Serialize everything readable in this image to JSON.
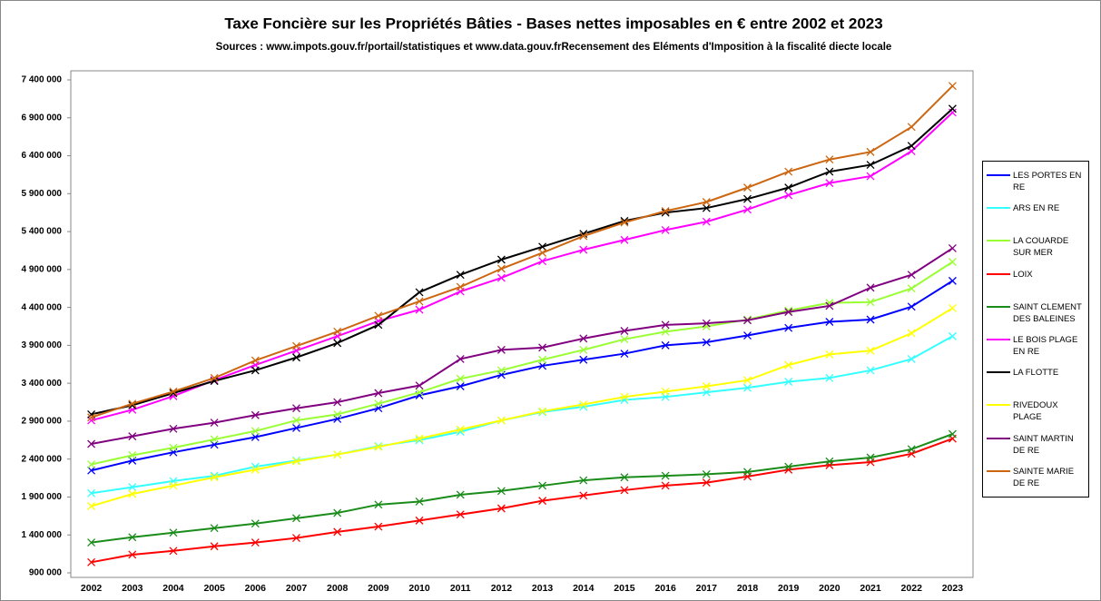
{
  "chart_data": {
    "type": "line",
    "title": "Taxe Foncière sur les Propriétés Bâties - Bases nettes imposables en € entre 2002 et 2023",
    "subtitle": "Sources : www.impots.gouv.fr/portail/statistiques et www.data.gouv.frRecensement des Eléments d'Imposition à la fiscalité diecte locale",
    "categories": [
      "2002",
      "2003",
      "2004",
      "2005",
      "2006",
      "2007",
      "2008",
      "2009",
      "2010",
      "2011",
      "2012",
      "2013",
      "2014",
      "2015",
      "2016",
      "2017",
      "2018",
      "2019",
      "2020",
      "2021",
      "2022",
      "2023"
    ],
    "ylim": [
      900000,
      7400000
    ],
    "yticks": [
      {
        "value": 900000,
        "label": "900 000"
      },
      {
        "value": 1400000,
        "label": "1 400 000"
      },
      {
        "value": 1900000,
        "label": "1 900 000"
      },
      {
        "value": 2400000,
        "label": "2 400 000"
      },
      {
        "value": 2900000,
        "label": "2 900 000"
      },
      {
        "value": 3400000,
        "label": "3 400 000"
      },
      {
        "value": 3900000,
        "label": "3 900 000"
      },
      {
        "value": 4400000,
        "label": "4 400 000"
      },
      {
        "value": 4900000,
        "label": "4 900 000"
      },
      {
        "value": 5400000,
        "label": "5 400 000"
      },
      {
        "value": 5900000,
        "label": "5 900 000"
      },
      {
        "value": 6400000,
        "label": "6 400 000"
      },
      {
        "value": 6900000,
        "label": "6 900 000"
      },
      {
        "value": 7400000,
        "label": "7 400 000"
      }
    ],
    "grid": false,
    "legend": "right",
    "series": [
      {
        "name": "LES PORTES EN RE",
        "color": "#0000ff",
        "values": [
          2250000,
          2380000,
          2490000,
          2590000,
          2690000,
          2810000,
          2930000,
          3070000,
          3240000,
          3360000,
          3510000,
          3630000,
          3710000,
          3790000,
          3900000,
          3940000,
          4030000,
          4130000,
          4210000,
          4240000,
          4410000,
          4750000
        ]
      },
      {
        "name": "ARS EN RE",
        "color": "#33ffff",
        "values": [
          1950000,
          2030000,
          2110000,
          2180000,
          2300000,
          2380000,
          2460000,
          2570000,
          2650000,
          2760000,
          2910000,
          3020000,
          3090000,
          3180000,
          3220000,
          3280000,
          3340000,
          3420000,
          3470000,
          3570000,
          3720000,
          4020000
        ]
      },
      {
        "name": "LA COUARDE SUR MER",
        "color": "#99ff33",
        "values": [
          2330000,
          2450000,
          2550000,
          2660000,
          2770000,
          2910000,
          2990000,
          3130000,
          3280000,
          3460000,
          3570000,
          3710000,
          3840000,
          3980000,
          4080000,
          4150000,
          4240000,
          4360000,
          4460000,
          4470000,
          4650000,
          5000000
        ]
      },
      {
        "name": "LOIX",
        "color": "#ff0000",
        "values": [
          1040000,
          1140000,
          1190000,
          1250000,
          1300000,
          1360000,
          1440000,
          1510000,
          1590000,
          1670000,
          1750000,
          1850000,
          1920000,
          1990000,
          2050000,
          2090000,
          2170000,
          2260000,
          2320000,
          2360000,
          2470000,
          2670000
        ]
      },
      {
        "name": "SAINT CLEMENT DES BALEINES",
        "color": "#1a8c1a",
        "values": [
          1300000,
          1370000,
          1430000,
          1490000,
          1550000,
          1620000,
          1690000,
          1800000,
          1840000,
          1930000,
          1980000,
          2050000,
          2120000,
          2160000,
          2180000,
          2200000,
          2230000,
          2300000,
          2370000,
          2420000,
          2530000,
          2730000
        ]
      },
      {
        "name": "LE BOIS PLAGE EN RE",
        "color": "#ff00ff",
        "values": [
          2910000,
          3050000,
          3230000,
          3440000,
          3640000,
          3830000,
          4020000,
          4220000,
          4370000,
          4610000,
          4790000,
          5010000,
          5160000,
          5290000,
          5420000,
          5530000,
          5690000,
          5880000,
          6040000,
          6130000,
          6460000,
          6970000
        ]
      },
      {
        "name": "LA FLOTTE",
        "color": "#000000",
        "values": [
          2990000,
          3110000,
          3270000,
          3430000,
          3570000,
          3740000,
          3930000,
          4170000,
          4600000,
          4830000,
          5030000,
          5200000,
          5370000,
          5540000,
          5650000,
          5710000,
          5830000,
          5980000,
          6190000,
          6280000,
          6530000,
          7020000
        ]
      },
      {
        "name": "RIVEDOUX PLAGE",
        "color": "#ffff00",
        "values": [
          1780000,
          1940000,
          2050000,
          2160000,
          2260000,
          2370000,
          2460000,
          2560000,
          2670000,
          2790000,
          2910000,
          3030000,
          3120000,
          3220000,
          3290000,
          3360000,
          3440000,
          3640000,
          3780000,
          3830000,
          4060000,
          4390000
        ]
      },
      {
        "name": "SAINT MARTIN DE RE",
        "color": "#800080",
        "values": [
          2600000,
          2700000,
          2800000,
          2880000,
          2980000,
          3070000,
          3150000,
          3270000,
          3370000,
          3720000,
          3840000,
          3870000,
          3990000,
          4090000,
          4170000,
          4190000,
          4230000,
          4340000,
          4420000,
          4660000,
          4830000,
          5180000
        ]
      },
      {
        "name": "SAINTE MARIE DE RE",
        "color": "#cc6611",
        "values": [
          2950000,
          3130000,
          3290000,
          3470000,
          3700000,
          3890000,
          4080000,
          4290000,
          4480000,
          4670000,
          4910000,
          5120000,
          5340000,
          5520000,
          5670000,
          5790000,
          5980000,
          6190000,
          6350000,
          6450000,
          6780000,
          7320000
        ]
      }
    ]
  }
}
